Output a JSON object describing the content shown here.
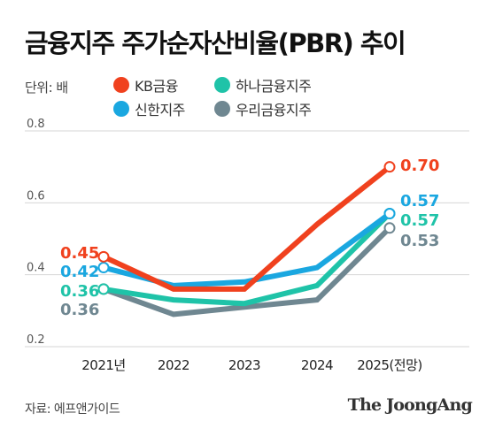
{
  "title": "금융지주 주가순자산비율(PBR) 추이",
  "unit_label": "단위: 배",
  "source": "자료: 에프앤가이드",
  "brand": "The JoongAng",
  "chart_data": {
    "type": "line",
    "categories": [
      "2021년",
      "2022",
      "2023",
      "2024",
      "2025(전망)"
    ],
    "ylim": [
      0.2,
      0.8
    ],
    "yticks": [
      "0.2",
      "0.4",
      "0.6",
      "0.8"
    ],
    "grid": true,
    "legend_position": "top",
    "series": [
      {
        "name": "KB금융",
        "color": "#f0411e",
        "values": [
          0.45,
          0.36,
          0.36,
          0.54,
          0.7
        ],
        "end_labels": {
          "first": "0.45",
          "last": "0.70"
        }
      },
      {
        "name": "신한지주",
        "color": "#1aa7e0",
        "values": [
          0.42,
          0.37,
          0.38,
          0.42,
          0.57
        ],
        "end_labels": {
          "first": "0.42",
          "last": "0.57"
        }
      },
      {
        "name": "하나금융지주",
        "color": "#1fc3a8",
        "values": [
          0.36,
          0.33,
          0.32,
          0.37,
          0.57
        ],
        "end_labels": {
          "first": "0.36",
          "last": "0.57"
        }
      },
      {
        "name": "우리금융지주",
        "color": "#6f8791",
        "values": [
          0.36,
          0.29,
          0.31,
          0.33,
          0.53
        ],
        "end_labels": {
          "first": "0.36",
          "last": "0.53"
        }
      }
    ]
  }
}
